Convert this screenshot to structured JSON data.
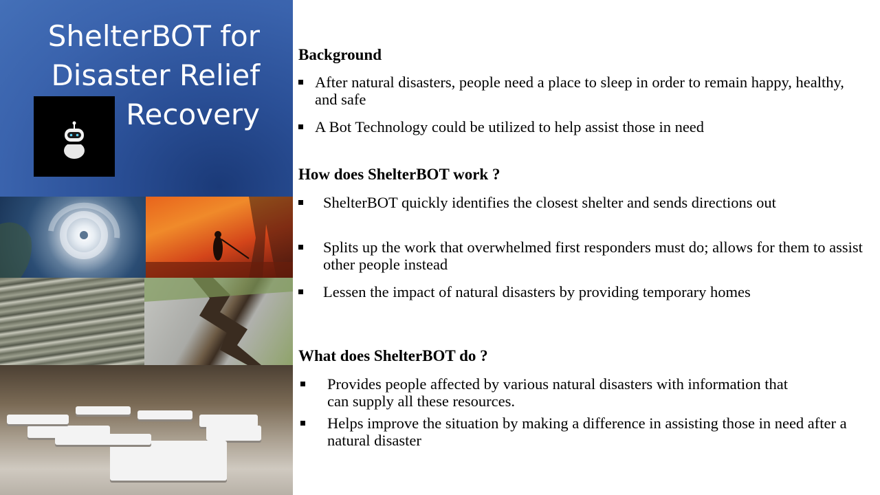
{
  "title": {
    "text": "ShelterBOT for\nDisaster Relief\nRecovery"
  },
  "images": {
    "logo": "robot-logo",
    "photos": [
      "hurricane-satellite-photo",
      "wildfire-firefighter-photo",
      "flood-waves-photo",
      "earthquake-cracked-road-photo",
      "shelter-cots-photo"
    ]
  },
  "colors": {
    "title_panel": "#3a63ad",
    "title_text": "#ffffff"
  },
  "sections": [
    {
      "heading": "Background",
      "bullets": [
        "After natural disasters, people need a place to sleep in order to remain happy, healthy, and safe",
        "A Bot Technology could be utilized to help assist those in need"
      ]
    },
    {
      "heading": "How does ShelterBOT work ?",
      "bullets": [
        "ShelterBOT quickly identifies the closest shelter and sends directions out",
        "Splits up the work that overwhelmed first responders must do; allows for them to assist other people instead",
        "Lessen the impact of natural disasters by providing temporary homes"
      ]
    },
    {
      "heading": "What does ShelterBOT do ?",
      "bullets": [
        "Provides people affected by various natural disasters with information that can supply all these resources.",
        "Helps improve the situation by making a difference in assisting those in need after a natural disaster"
      ]
    }
  ]
}
